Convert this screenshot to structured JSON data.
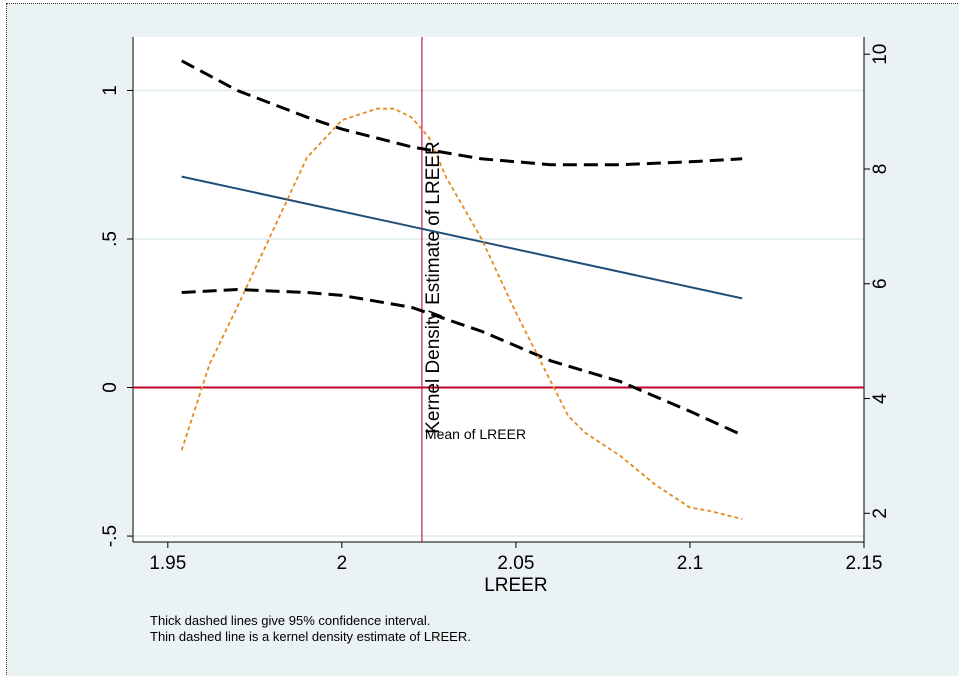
{
  "chart_data": {
    "type": "line",
    "xlabel": "LREER",
    "y2label": "Kernel Density Estimate of LREER",
    "xlim": [
      1.94,
      2.15
    ],
    "ylim": [
      -0.52,
      1.18
    ],
    "y2lim": [
      1.5,
      10.3
    ],
    "x_ticks": [
      1.95,
      2.0,
      2.05,
      2.1,
      2.15
    ],
    "x_tick_labels": [
      "1.95",
      "2",
      "2.05",
      "2.1",
      "2.15"
    ],
    "y_ticks": [
      -0.5,
      0,
      0.5,
      1
    ],
    "y_tick_labels": [
      "-.5",
      "0",
      ".5",
      "1"
    ],
    "y2_ticks": [
      2,
      4,
      6,
      8,
      10
    ],
    "y2_tick_labels": [
      "2",
      "4",
      "6",
      "8",
      "10"
    ],
    "mean_line": {
      "x": 2.023,
      "label": "Mean of LREER"
    },
    "zero_line": {
      "y": 0
    },
    "series": [
      {
        "role": "estimate",
        "color": "#1f4e79",
        "style": "solid",
        "axis": "left",
        "x": [
          1.954,
          2.115
        ],
        "y": [
          0.71,
          0.3
        ]
      },
      {
        "role": "upper_ci",
        "color": "#000000",
        "style": "dashed-thick",
        "axis": "left",
        "x": [
          1.954,
          1.97,
          1.99,
          2.0,
          2.02,
          2.04,
          2.06,
          2.08,
          2.1,
          2.115
        ],
        "y": [
          1.1,
          1.0,
          0.91,
          0.87,
          0.81,
          0.77,
          0.75,
          0.75,
          0.76,
          0.77
        ]
      },
      {
        "role": "lower_ci",
        "color": "#000000",
        "style": "dashed-thick",
        "axis": "left",
        "x": [
          1.954,
          1.97,
          1.99,
          2.0,
          2.02,
          2.04,
          2.06,
          2.08,
          2.1,
          2.115
        ],
        "y": [
          0.32,
          0.33,
          0.32,
          0.31,
          0.27,
          0.19,
          0.09,
          0.02,
          -0.08,
          -0.16
        ]
      },
      {
        "role": "kernel_density",
        "color": "#e58a1f",
        "style": "dashed-thin",
        "axis": "right",
        "x": [
          1.954,
          1.962,
          1.97,
          1.98,
          1.99,
          2.0,
          2.01,
          2.015,
          2.02,
          2.025,
          2.03,
          2.04,
          2.05,
          2.06,
          2.065,
          2.07,
          2.08,
          2.09,
          2.1,
          2.105,
          2.115
        ],
        "y": [
          3.1,
          4.6,
          5.6,
          6.9,
          8.2,
          8.85,
          9.05,
          9.05,
          8.9,
          8.55,
          7.85,
          6.8,
          5.5,
          4.3,
          3.7,
          3.4,
          3.0,
          2.5,
          2.1,
          2.05,
          1.9
        ]
      }
    ]
  },
  "notes": [
    "Thick dashed lines give 95% confidence interval.",
    "Thin dashed line is a kernel density estimate of LREER."
  ],
  "colors": {
    "panel": "#eaf2f3",
    "plot_bg": "#ffffff",
    "grid": "#ddeaec",
    "axis": "#000000",
    "zero_line": "#c00028",
    "mean_line": "#c2185b"
  }
}
